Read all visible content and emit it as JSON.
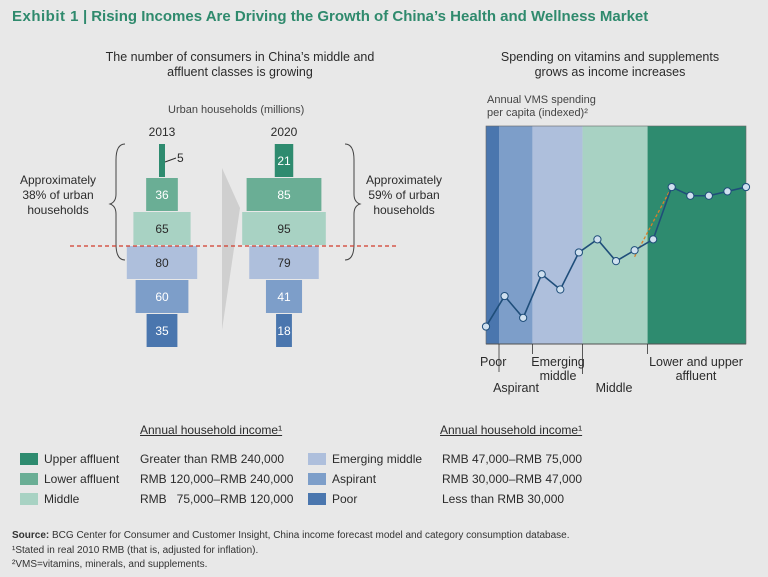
{
  "title": {
    "exhibit": "Exhibit 1",
    "separator": "|",
    "text": "Rising Incomes Are Driving the Growth of China’s Health and Wellness Market"
  },
  "left_panel": {
    "subtitle_line1": "The number of consumers in China’s middle and",
    "subtitle_line2": "affluent classes is growing",
    "axis_label": "Urban households (millions)",
    "note_2013": [
      "Approximately",
      "38% of urban",
      "households"
    ],
    "note_2020": [
      "Approximately",
      "59% of urban",
      "households"
    ]
  },
  "right_panel": {
    "subtitle_line1": "Spending on vitamins and supplements",
    "subtitle_line2": "grows as income increases",
    "ylabel_line1": "Annual VMS spending",
    "ylabel_line2": "per capita (indexed)²"
  },
  "chart_data": [
    {
      "type": "bar",
      "subtype": "population-pyramid",
      "title": "The number of consumers in China’s middle and affluent classes is growing",
      "ylabel": "Urban households (millions)",
      "categories": [
        "Upper affluent",
        "Lower affluent",
        "Middle",
        "Emerging middle",
        "Aspirant",
        "Poor"
      ],
      "series": [
        {
          "name": "2013",
          "values": [
            5,
            36,
            65,
            80,
            60,
            35
          ],
          "labels": [
            "5",
            "36",
            "65",
            "80",
            "60",
            "35"
          ]
        },
        {
          "name": "2020",
          "values": [
            21,
            85,
            95,
            79,
            41,
            18
          ],
          "labels": [
            "21",
            "85",
            "95",
            "79",
            "41",
            "18"
          ]
        }
      ],
      "colors": [
        "#2e8b6f",
        "#6aae95",
        "#a8d2c3",
        "#aebfdc",
        "#7d9ec9",
        "#4a76ae"
      ]
    },
    {
      "type": "line",
      "title": "Spending on vitamins and supplements grows as income increases",
      "ylabel": "Annual VMS spending per capita (indexed)²",
      "ylim": [
        0,
        100
      ],
      "x": [
        0,
        1,
        2,
        3,
        4,
        5,
        6,
        7,
        8,
        9,
        10,
        11,
        12,
        13,
        14
      ],
      "series": [
        {
          "name": "VMS spending",
          "values": [
            8,
            22,
            12,
            32,
            25,
            42,
            48,
            38,
            43,
            48,
            72,
            68,
            68,
            70,
            72
          ]
        }
      ],
      "trend_segments": [
        {
          "x": [
            8,
            10
          ],
          "values": [
            40,
            72
          ]
        }
      ],
      "bands": [
        {
          "name": "Poor",
          "from": 0,
          "to": 0.7,
          "color": "#4a76ae"
        },
        {
          "name": "Aspirant",
          "from": 0.7,
          "to": 2.5,
          "color": "#7d9ec9"
        },
        {
          "name": "Emerging middle",
          "from": 2.5,
          "to": 5.2,
          "color": "#aebfdc"
        },
        {
          "name": "Middle",
          "from": 5.2,
          "to": 8.7,
          "color": "#a8d2c3"
        },
        {
          "name": "Lower and upper affluent",
          "from": 8.7,
          "to": 14,
          "color": "#2e8b6f"
        }
      ],
      "band_labels": [
        "Poor",
        "Aspirant",
        "Emerging",
        "middle",
        "Middle",
        "Lower and upper",
        "affluent"
      ]
    }
  ],
  "legend": {
    "header_left": "Annual household income¹",
    "header_right": "Annual household income¹",
    "left": [
      {
        "name": "Upper affluent",
        "income": "Greater than RMB 240,000",
        "color": "#2e8b6f"
      },
      {
        "name": "Lower affluent",
        "income": "RMB 120,000–RMB 240,000",
        "color": "#6aae95"
      },
      {
        "name": "Middle",
        "income": "RMB   75,000–RMB 120,000",
        "color": "#a8d2c3"
      }
    ],
    "right": [
      {
        "name": "Emerging middle",
        "income": "RMB 47,000–RMB 75,000",
        "color": "#aebfdc"
      },
      {
        "name": "Aspirant",
        "income": "RMB 30,000–RMB 47,000",
        "color": "#7d9ec9"
      },
      {
        "name": "Poor",
        "income": "Less than RMB 30,000",
        "color": "#4a76ae"
      }
    ]
  },
  "footer": {
    "source_label": "Source:",
    "source_text": " BCG Center for Consumer and Customer Insight, China income forecast model and category consumption database.",
    "note1": "¹Stated in real 2010 RMB (that is, adjusted for inflation).",
    "note2": "²VMS=vitamins, minerals, and supplements."
  }
}
